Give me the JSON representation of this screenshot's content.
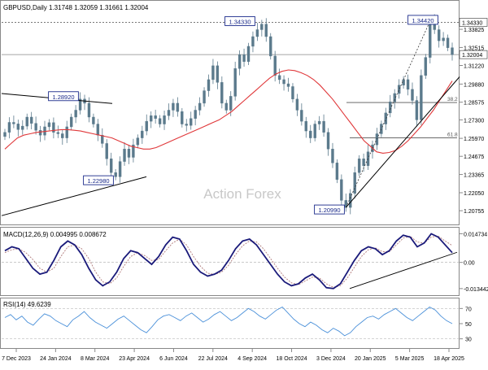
{
  "chart_data": {
    "type": "candlestick",
    "watermark": "Action Forex",
    "colors": {
      "candle": "#5b7a8c",
      "sma": "#e0383a",
      "macd": "#1a1a7a",
      "signal": "#b07a7a",
      "rsi": "#4a90d9",
      "trend": "#000000",
      "hline": "#555555"
    },
    "x_ticks": [
      "7 Dec 2023",
      "24 Jan 2024",
      "8 Mar 2024",
      "23 Apr 2024",
      "6 Jun 2024",
      "22 Jul 2024",
      "4 Sep 2024",
      "18 Oct 2024",
      "3 Dec 2024",
      "20 Jan 2025",
      "5 Mar 2025",
      "18 Apr 2025"
    ],
    "price_panel": {
      "header": "GBPUSD,Daily  1.31748 1.32059 1.31661 1.32004",
      "ylim": [
        1.2,
        1.35
      ],
      "y_ticks": [
        "1.33825",
        "1.32515",
        "1.31220",
        "1.29880",
        "1.28575",
        "1.27300",
        "1.25970",
        "1.24675",
        "1.23365",
        "1.22050",
        "1.20755"
      ],
      "current_price": "1.32004",
      "top_label": "1.34330",
      "annotations": [
        "1.34330",
        "1.34420",
        "1.28920",
        "1.22980",
        "1.20990"
      ],
      "fib_labels": [
        "38.2",
        "61.8"
      ],
      "fib_levels": [
        1.2855,
        1.26
      ],
      "resistance_level": 1.3433,
      "close": [
        1.264,
        1.2712,
        1.2701,
        1.266,
        1.2685,
        1.275,
        1.2705,
        1.2655,
        1.262,
        1.268,
        1.271,
        1.264,
        1.263,
        1.26,
        1.268,
        1.275,
        1.28,
        1.288,
        1.285,
        1.275,
        1.27,
        1.262,
        1.256,
        1.245,
        1.235,
        1.232,
        1.243,
        1.252,
        1.246,
        1.255,
        1.26,
        1.265,
        1.272,
        1.276,
        1.274,
        1.27,
        1.276,
        1.28,
        1.285,
        1.279,
        1.27,
        1.269,
        1.274,
        1.28,
        1.285,
        1.294,
        1.302,
        1.312,
        1.3,
        1.285,
        1.28,
        1.29,
        1.31,
        1.32,
        1.315,
        1.326,
        1.333,
        1.338,
        1.342,
        1.333,
        1.319,
        1.305,
        1.302,
        1.299,
        1.297,
        1.288,
        1.28,
        1.272,
        1.265,
        1.26,
        1.27,
        1.272,
        1.264,
        1.252,
        1.242,
        1.23,
        1.215,
        1.2099,
        1.22,
        1.235,
        1.245,
        1.24,
        1.25,
        1.255,
        1.263,
        1.27,
        1.278,
        1.286,
        1.292,
        1.298,
        1.302,
        1.295,
        1.287,
        1.273,
        1.305,
        1.318,
        1.3442,
        1.338,
        1.33,
        1.332,
        1.325,
        1.32
      ],
      "sma": [
        1.252,
        1.256,
        1.26,
        1.262,
        1.263,
        1.264,
        1.2645,
        1.265,
        1.2655,
        1.266,
        1.266,
        1.2655,
        1.265,
        1.264,
        1.263,
        1.262,
        1.261,
        1.26,
        1.258,
        1.256,
        1.254,
        1.253,
        1.252,
        1.252,
        1.253,
        1.255,
        1.257,
        1.259,
        1.261,
        1.263,
        1.265,
        1.267,
        1.269,
        1.271,
        1.273,
        1.276,
        1.279,
        1.283,
        1.287,
        1.291,
        1.295,
        1.299,
        1.303,
        1.306,
        1.308,
        1.309,
        1.3085,
        1.307,
        1.305,
        1.302,
        1.298,
        1.293,
        1.288,
        1.282,
        1.276,
        1.27,
        1.264,
        1.258,
        1.254,
        1.25,
        1.249,
        1.2495,
        1.251,
        1.254,
        1.258,
        1.263,
        1.268,
        1.274,
        1.28,
        1.287,
        1.294,
        1.301
      ]
    },
    "macd_panel": {
      "header": "MACD(12,26,9) 0.004995 0.008672",
      "ylim": [
        -0.016,
        0.017
      ],
      "y_ticks": [
        "0.014734",
        "0.00",
        "-0.013442"
      ],
      "labels": [
        "0.00"
      ],
      "macd": [
        0.006,
        0.008,
        0.007,
        0.002,
        -0.003,
        -0.006,
        -0.005,
        0.001,
        0.008,
        0.011,
        0.009,
        0.004,
        -0.003,
        -0.009,
        -0.012,
        -0.01,
        -0.005,
        0.002,
        0.006,
        0.005,
        0.002,
        -0.001,
        0.003,
        0.009,
        0.013,
        0.012,
        0.006,
        -0.001,
        -0.005,
        -0.007,
        -0.006,
        -0.004,
        0.001,
        0.007,
        0.011,
        0.012,
        0.009,
        0.004,
        -0.001,
        -0.006,
        -0.01,
        -0.012,
        -0.011,
        -0.008,
        -0.006,
        -0.009,
        -0.013,
        -0.0134,
        -0.011,
        -0.005,
        0.001,
        0.006,
        0.008,
        0.007,
        0.004,
        0.006,
        0.011,
        0.014,
        0.013,
        0.008,
        0.01,
        0.0147,
        0.013,
        0.009,
        0.005
      ],
      "signal": [
        0.005,
        0.0065,
        0.007,
        0.005,
        0.0015,
        -0.003,
        -0.005,
        -0.003,
        0.003,
        0.008,
        0.009,
        0.007,
        0.002,
        -0.005,
        -0.01,
        -0.011,
        -0.008,
        -0.002,
        0.003,
        0.005,
        0.0035,
        0.001,
        0.0015,
        0.006,
        0.01,
        0.012,
        0.009,
        0.003,
        -0.002,
        -0.0055,
        -0.0062,
        -0.005,
        -0.0015,
        0.004,
        0.0085,
        0.011,
        0.0105,
        0.007,
        0.002,
        -0.003,
        -0.0075,
        -0.0105,
        -0.0115,
        -0.0095,
        -0.0075,
        -0.008,
        -0.011,
        -0.0128,
        -0.012,
        -0.008,
        -0.0025,
        0.003,
        0.0065,
        0.0075,
        0.0055,
        0.0055,
        0.009,
        0.0125,
        0.0135,
        0.0105,
        0.01,
        0.013,
        0.0135,
        0.011,
        0.0087
      ]
    },
    "rsi_panel": {
      "header": "RSI(14) 49.6239",
      "ylim": [
        20,
        80
      ],
      "y_ticks": [
        "70",
        "50",
        "30"
      ],
      "rsi": [
        58,
        62,
        55,
        60,
        52,
        48,
        56,
        63,
        60,
        54,
        50,
        46,
        55,
        60,
        66,
        58,
        52,
        48,
        44,
        50,
        56,
        60,
        54,
        48,
        42,
        38,
        46,
        55,
        60,
        62,
        58,
        54,
        60,
        64,
        58,
        52,
        56,
        62,
        66,
        60,
        54,
        58,
        64,
        70,
        66,
        60,
        56,
        62,
        68,
        72,
        64,
        56,
        50,
        46,
        52,
        48,
        42,
        38,
        44,
        40,
        34,
        38,
        46,
        52,
        58,
        60,
        56,
        62,
        66,
        70,
        64,
        58,
        54,
        60,
        66,
        72,
        68,
        60,
        54,
        50
      ]
    }
  }
}
